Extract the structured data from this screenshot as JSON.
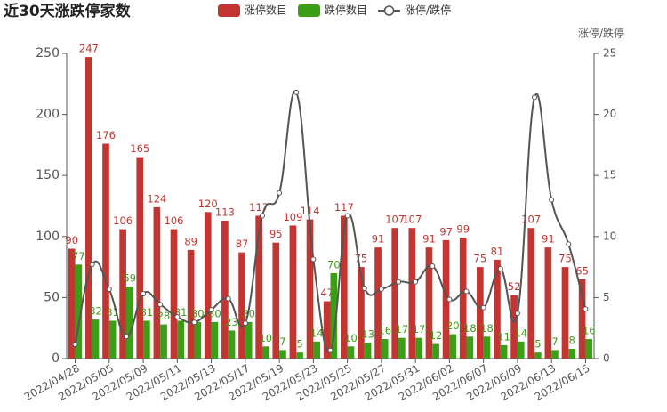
{
  "chart_data": {
    "type": "bar",
    "title": "近30天涨跌停家数",
    "y2_label": "涨停/跌停",
    "categories": [
      "2022/04/28",
      null,
      "2022/05/05",
      null,
      "2022/05/09",
      null,
      "2022/05/11",
      null,
      "2022/05/13",
      null,
      "2022/05/17",
      null,
      "2022/05/19",
      null,
      "2022/05/23",
      null,
      "2022/05/25",
      null,
      "2022/05/27",
      null,
      "2022/05/31",
      null,
      "2022/06/02",
      null,
      "2022/06/07",
      null,
      "2022/06/09",
      null,
      "2022/06/13",
      null,
      "2022/06/15"
    ],
    "series": [
      {
        "name": "涨停数目",
        "type": "bar",
        "color": "#c23531",
        "values": [
          90,
          247,
          176,
          106,
          165,
          124,
          106,
          89,
          120,
          113,
          87,
          117,
          95,
          109,
          114,
          47,
          117,
          75,
          91,
          107,
          107,
          91,
          97,
          99,
          75,
          81,
          52,
          107,
          91,
          75,
          65
        ]
      },
      {
        "name": "跌停数目",
        "type": "bar",
        "color": "#3a9e16",
        "values": [
          77,
          32,
          31,
          59,
          31,
          28,
          31,
          30,
          30,
          23,
          30,
          10,
          7,
          5,
          14,
          70,
          10,
          13,
          16,
          17,
          17,
          12,
          20,
          18,
          18,
          11,
          14,
          5,
          7,
          8,
          16
        ]
      },
      {
        "name": "涨停/跌停",
        "type": "line",
        "axis": "y2",
        "color": "#555555",
        "values": [
          1.17,
          7.72,
          5.68,
          1.8,
          5.32,
          4.43,
          3.42,
          2.97,
          4.0,
          4.91,
          2.9,
          11.7,
          13.57,
          21.8,
          8.14,
          0.67,
          11.7,
          5.77,
          5.69,
          6.29,
          6.29,
          7.58,
          4.85,
          5.5,
          4.17,
          7.36,
          3.71,
          21.4,
          13.0,
          9.38,
          4.06
        ]
      }
    ],
    "ylim": [
      0,
      250
    ],
    "yticks": [
      0,
      50,
      100,
      150,
      200,
      250
    ],
    "y2lim": [
      0,
      25
    ],
    "y2ticks": [
      0,
      5,
      10,
      15,
      20,
      25
    ],
    "legend": "top"
  }
}
